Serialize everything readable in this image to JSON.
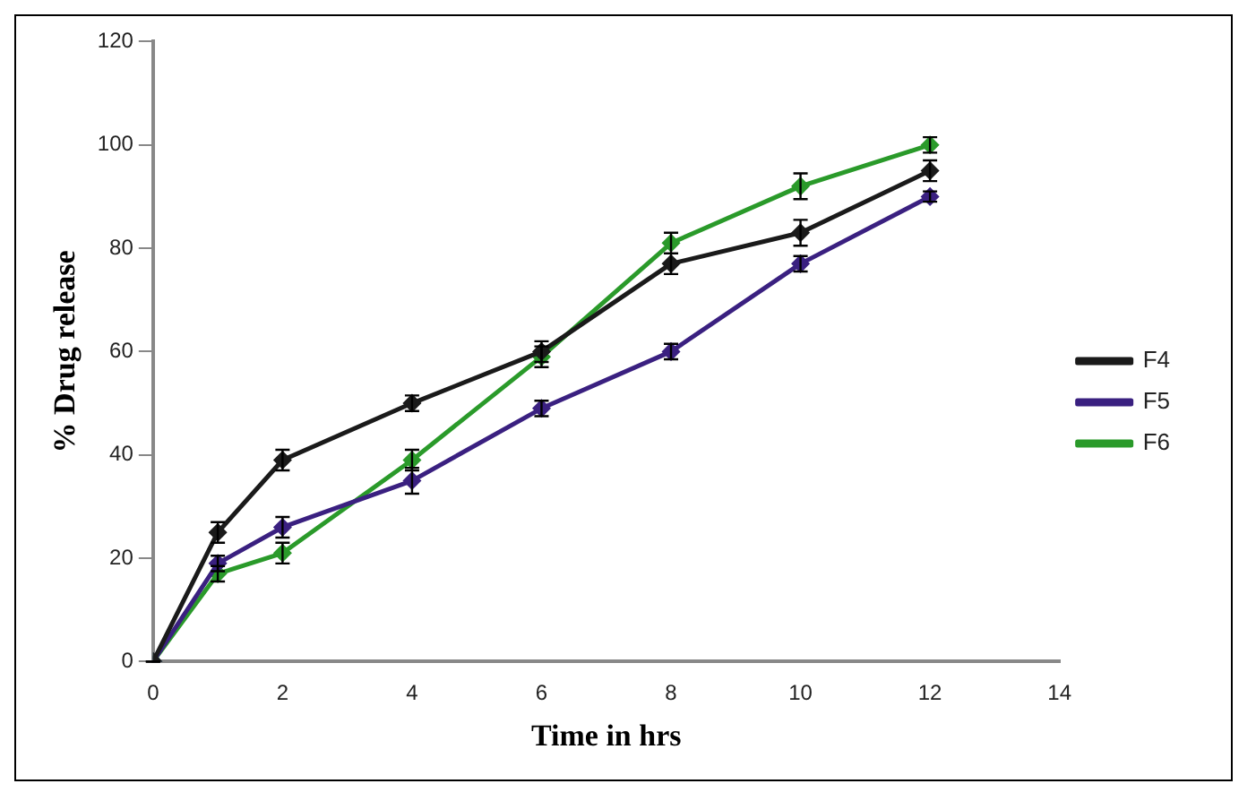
{
  "chart_data": {
    "type": "line",
    "xlabel": "Time in hrs",
    "ylabel": "% Drug release",
    "x": [
      0,
      1,
      2,
      4,
      6,
      8,
      10,
      12
    ],
    "series": [
      {
        "name": "F4",
        "color": "#1a1a1a",
        "values": [
          0,
          25,
          39,
          50,
          60,
          77,
          83,
          95
        ],
        "errors": [
          0,
          2,
          2,
          1.5,
          2,
          2,
          2.5,
          2
        ]
      },
      {
        "name": "F5",
        "color": "#3a2080",
        "values": [
          0,
          19,
          26,
          35,
          49,
          60,
          77,
          90
        ],
        "errors": [
          0,
          1.5,
          2,
          2.5,
          1.5,
          1.5,
          1.5,
          1
        ]
      },
      {
        "name": "F6",
        "color": "#2a9a2a",
        "values": [
          0,
          17,
          21,
          39,
          59,
          81,
          92,
          100
        ],
        "errors": [
          0,
          1.5,
          2,
          2,
          2,
          2,
          2.5,
          1.5
        ]
      }
    ],
    "xlim": [
      0,
      14
    ],
    "xticks": [
      0,
      2,
      4,
      6,
      8,
      10,
      12,
      14
    ],
    "ylim": [
      0,
      120
    ],
    "yticks": [
      0,
      20,
      40,
      60,
      80,
      100,
      120
    ],
    "grid": false,
    "legend": "right",
    "marker": "diamond",
    "line_style": "solid"
  }
}
